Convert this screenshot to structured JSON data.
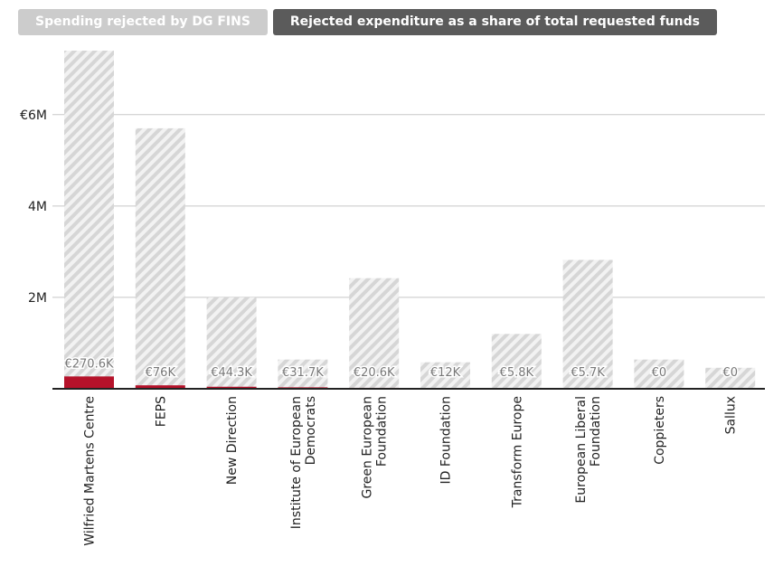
{
  "tabs": [
    {
      "label": "Spending rejected by DG FINS",
      "active": false
    },
    {
      "label": "Rejected expenditure as a share of total requested funds",
      "active": true
    }
  ],
  "chart_data": {
    "type": "bar",
    "categories": [
      [
        "Wilfried Martens Centre"
      ],
      [
        "FEPS"
      ],
      [
        "New Direction"
      ],
      [
        "Institute of European",
        "Democrats"
      ],
      [
        "Green European",
        "Foundation"
      ],
      [
        "ID Foundation"
      ],
      [
        "Transform Europe"
      ],
      [
        "European Liberal",
        "Foundation"
      ],
      [
        "Coppieters"
      ],
      [
        "Sallux"
      ]
    ],
    "series": [
      {
        "values": [
          7400000,
          5700000,
          2000000,
          640000,
          2420000,
          580000,
          1200000,
          2820000,
          640000,
          460000
        ]
      },
      {
        "values": [
          270600,
          76000,
          44300,
          31700,
          20600,
          12000,
          5800,
          5700,
          0,
          0
        ]
      }
    ],
    "data_labels": [
      "€270.6K",
      "€76K",
      "€44.3K",
      "€31.7K",
      "€20.6K",
      "€12K",
      "€5.8K",
      "€5.7K",
      "€0",
      "€0"
    ],
    "yticks": [
      {
        "value": 2000000,
        "label": "2M"
      },
      {
        "value": 4000000,
        "label": "4M"
      },
      {
        "value": 6000000,
        "label": "€6M"
      }
    ],
    "ylim": [
      0,
      7400000
    ],
    "grid": true,
    "colors": {
      "rejected": "#b5122a",
      "total_hatch": "#d6d6d6",
      "grid": "#c8c8c8",
      "axis": "#222222"
    }
  }
}
